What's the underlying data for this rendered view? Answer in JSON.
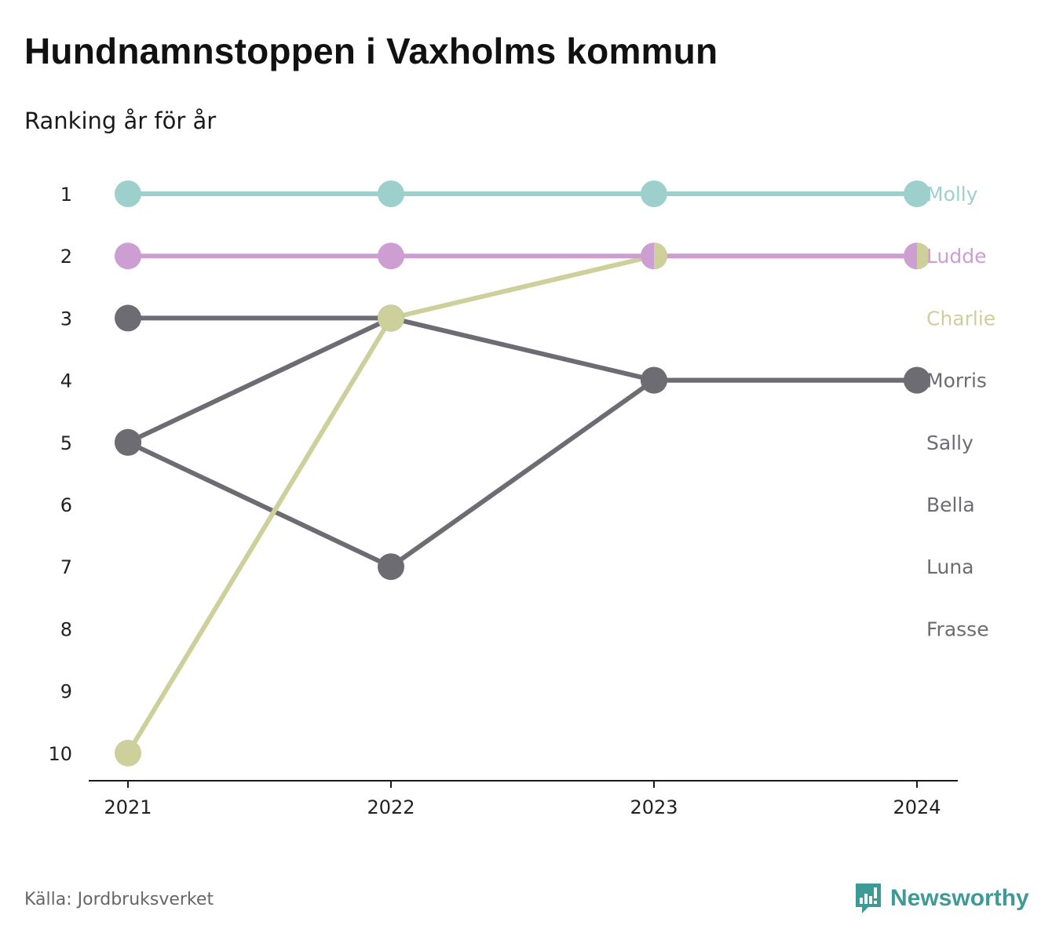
{
  "header": {
    "title": "Hundnamnstoppen i Vaxholms kommun",
    "subtitle": "Ranking år för år"
  },
  "footer": {
    "source": "Källa: Jordbruksverket",
    "brand": "Newsworthy",
    "brand_icon": "newsworthy-logo-icon",
    "brand_color": "#3d9a96"
  },
  "chart_data": {
    "type": "line",
    "title": "Hundnamnstoppen i Vaxholms kommun",
    "subtitle": "Ranking år för år",
    "x": [
      "2021",
      "2022",
      "2023",
      "2024"
    ],
    "y_ticks": [
      "1",
      "2",
      "3",
      "4",
      "5",
      "6",
      "7",
      "8",
      "9",
      "10"
    ],
    "ylim": [
      1,
      10
    ],
    "y_reversed": true,
    "grid": false,
    "legend": "end-labels-right",
    "series": [
      {
        "name": "Molly",
        "color": "#9dcfcc",
        "values": [
          1,
          1,
          1,
          1
        ]
      },
      {
        "name": "Ludde",
        "color": "#cc9ed2",
        "values": [
          2,
          2,
          2,
          2
        ]
      },
      {
        "name": "Charlie",
        "color": "#cdd09a",
        "values": [
          10,
          3,
          2,
          2
        ]
      },
      {
        "name": "Morris",
        "color": "#6d6c73",
        "values": [
          5,
          3,
          4,
          4
        ]
      },
      {
        "name": "Sally",
        "color": "#6d6c73",
        "values": [
          3,
          3,
          null,
          null
        ]
      },
      {
        "name": "Bella",
        "color": "#6d6c73",
        "values": [
          5,
          7,
          4,
          4
        ]
      },
      {
        "name": "Luna",
        "color": "#6d6c73",
        "values": [
          null,
          null,
          null,
          null
        ]
      },
      {
        "name": "Frasse",
        "color": "#6d6c73",
        "values": [
          null,
          null,
          null,
          null
        ]
      }
    ],
    "end_labels": [
      {
        "text": "Molly",
        "rank": 1,
        "color": "#9dcfcc"
      },
      {
        "text": "Ludde",
        "rank": 2,
        "color": "#cc9ed2"
      },
      {
        "text": "Charlie",
        "rank": 3,
        "color": "#cdd09a"
      },
      {
        "text": "Morris",
        "rank": 4,
        "color": "#6d6c73"
      },
      {
        "text": "Sally",
        "rank": 5,
        "color": "#6d6c73"
      },
      {
        "text": "Bella",
        "rank": 6,
        "color": "#6d6c73"
      },
      {
        "text": "Luna",
        "rank": 7,
        "color": "#6d6c73"
      },
      {
        "text": "Frasse",
        "rank": 8,
        "color": "#6d6c73"
      }
    ],
    "axis_color": "#1a1a1a",
    "tick_label_color": "#222222"
  }
}
